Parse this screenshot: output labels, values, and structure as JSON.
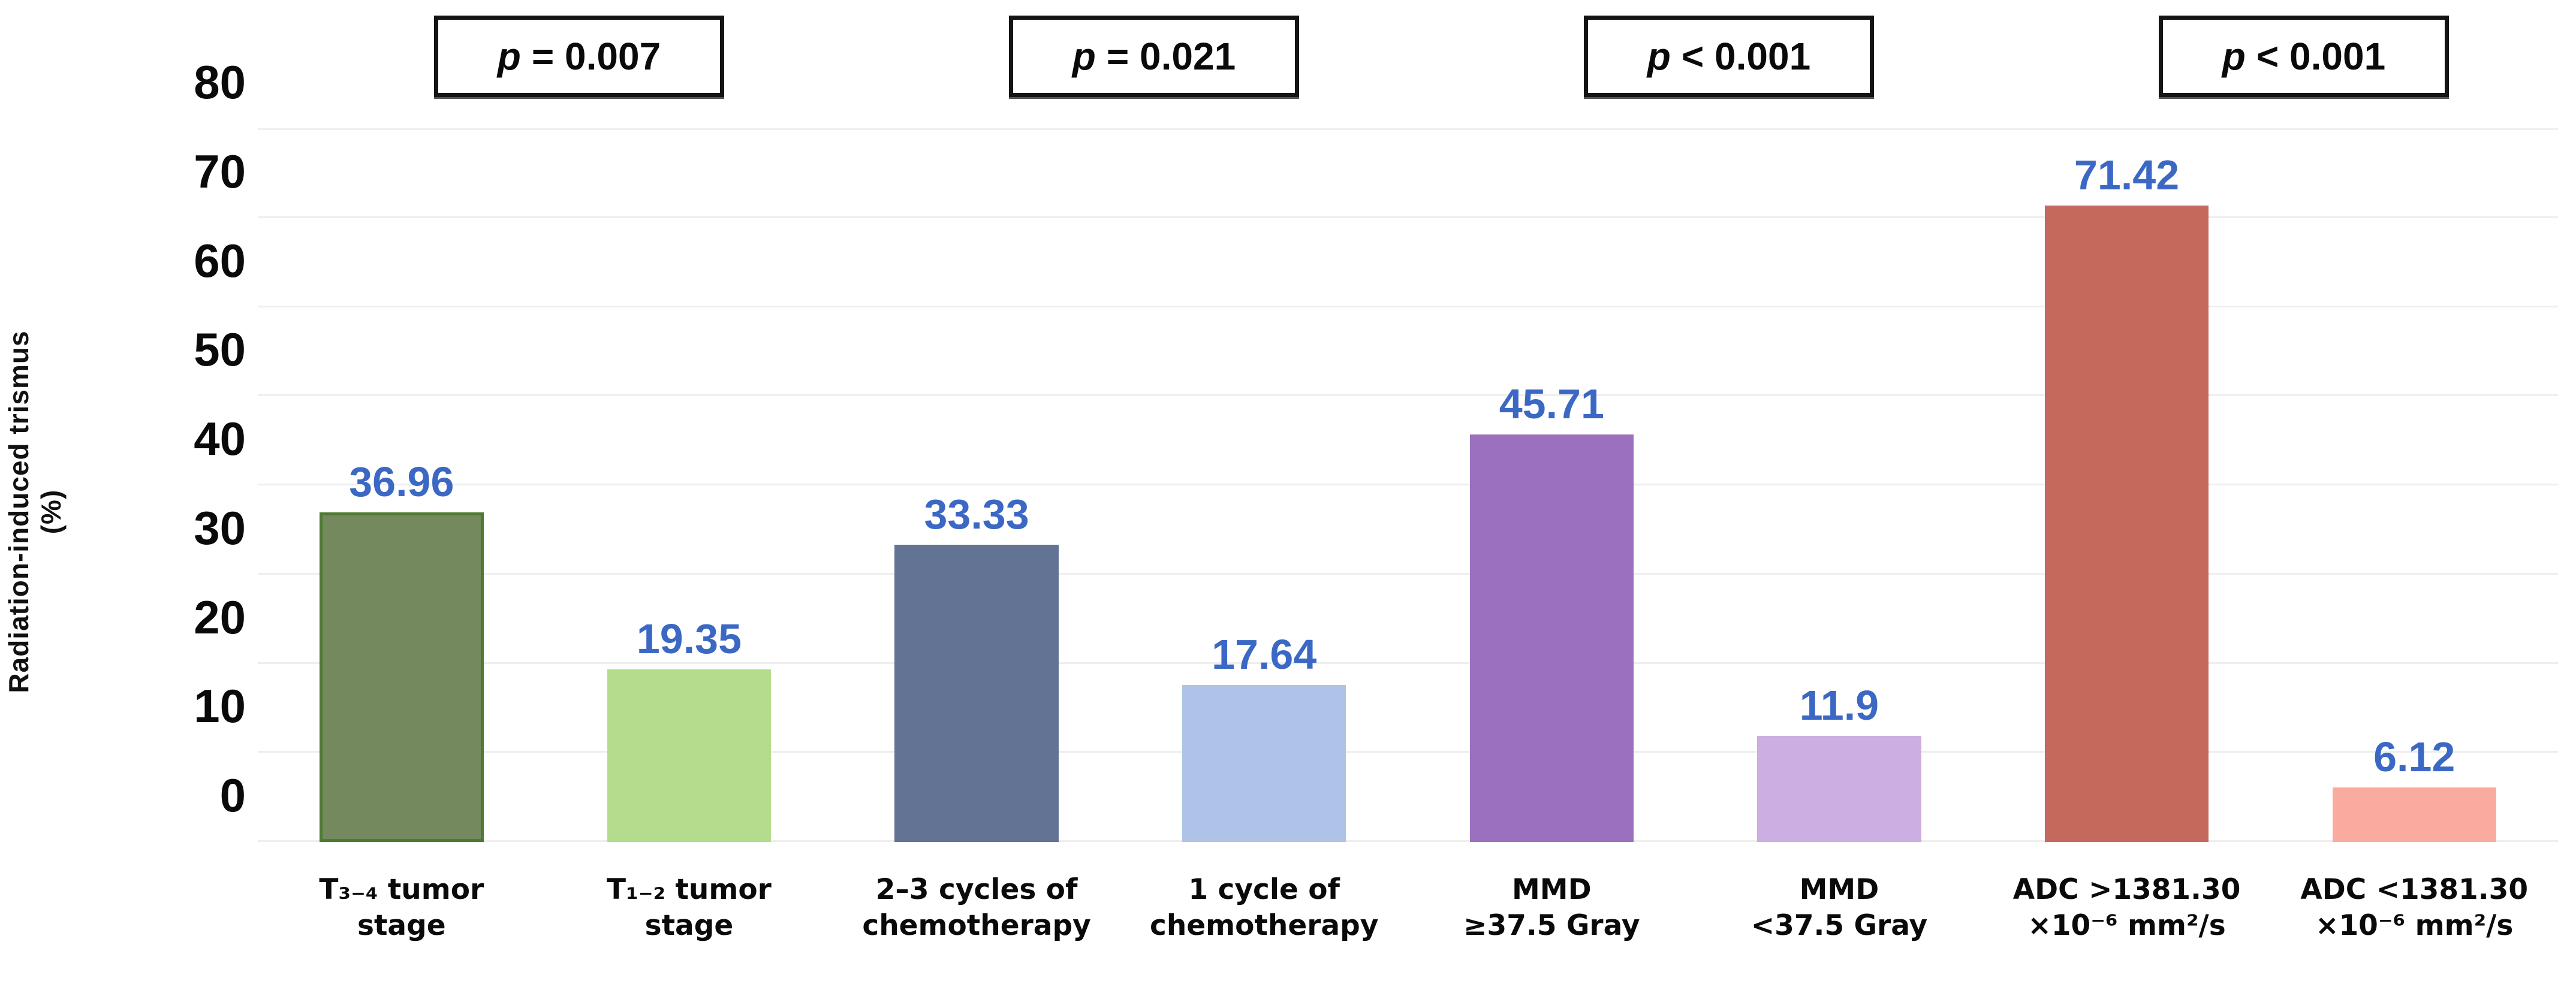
{
  "chart_data": {
    "type": "bar",
    "title": "",
    "xlabel": "",
    "ylabel": "Radiation-induced trismus (%)",
    "ylim": [
      0,
      80
    ],
    "grid": "horizontal-light-gray",
    "legend": "none",
    "yticks": [
      "80",
      "70",
      "60",
      "50",
      "40",
      "30",
      "20",
      "10",
      "0"
    ],
    "categories": [
      {
        "line1": "T₃₋₄ tumor",
        "line2": "stage"
      },
      {
        "line1": "T₁₋₂ tumor",
        "line2": "stage"
      },
      {
        "line1": "2–3 cycles of",
        "line2": "chemotherapy"
      },
      {
        "line1": "1 cycle of",
        "line2": "chemotherapy"
      },
      {
        "line1": "MMD",
        "line2": "≥37.5 Gray"
      },
      {
        "line1": "MMD",
        "line2": "<37.5 Gray"
      },
      {
        "line1": "ADC >1381.30",
        "line2": "×10⁻⁶ mm²/s"
      },
      {
        "line1": "ADC <1381.30",
        "line2": "×10⁻⁶ mm²/s"
      }
    ],
    "values": [
      36.96,
      19.35,
      33.33,
      17.64,
      45.71,
      11.9,
      71.42,
      6.12
    ],
    "value_labels": [
      "36.96",
      "19.35",
      "33.33",
      "17.64",
      "45.71",
      "11.9",
      "71.42",
      "6.12"
    ],
    "bar_colors": [
      "#75895f",
      "#b3dc8d",
      "#627394",
      "#aec3e7",
      "#9b70bf",
      "#cdaee2",
      "#c4695c",
      "#f9ab9f"
    ],
    "bar_border_colors": [
      "#4e7a31",
      "",
      "",
      "",
      "",
      "",
      "",
      ""
    ],
    "value_label_color": "#3b68c4",
    "p_values": [
      {
        "symbol": "p",
        "text": "= 0.007"
      },
      {
        "symbol": "p",
        "text": "= 0.021"
      },
      {
        "symbol": "p",
        "text": "< 0.001"
      },
      {
        "symbol": "p",
        "text": "< 0.001"
      }
    ]
  }
}
